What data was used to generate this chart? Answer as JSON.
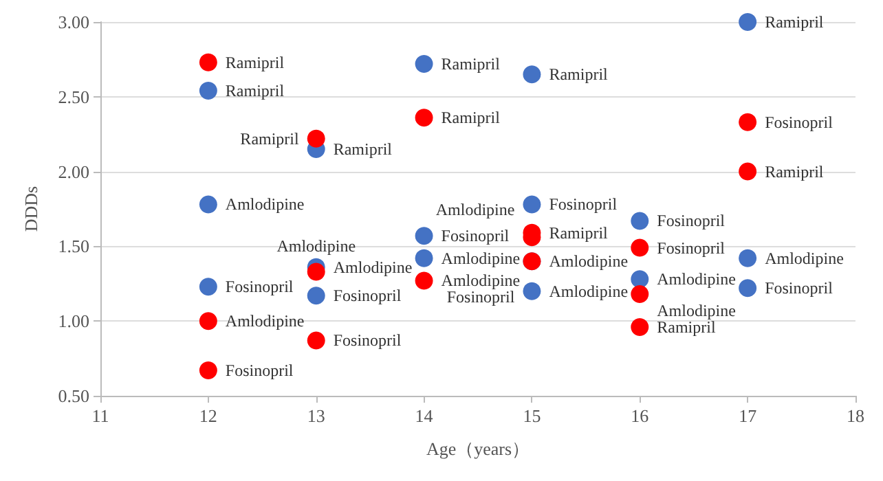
{
  "chart_data": {
    "type": "scatter",
    "xlabel": "Age（years）",
    "ylabel": "DDDs",
    "xlim": [
      11,
      18
    ],
    "xticks": [
      11,
      12,
      13,
      14,
      15,
      16,
      17,
      18
    ],
    "ylim": [
      0.5,
      3.0
    ],
    "yticks": [
      {
        "value": 0.5,
        "label": "0.50"
      },
      {
        "value": 1.0,
        "label": "1.00"
      },
      {
        "value": 1.5,
        "label": "1.50"
      },
      {
        "value": 2.0,
        "label": "2.00"
      },
      {
        "value": 2.5,
        "label": "2.50"
      },
      {
        "value": 3.0,
        "label": "3.00"
      }
    ],
    "grid": "y",
    "marker": "circle",
    "series": [
      {
        "color": "#4472c4",
        "x": [
          12,
          12,
          12,
          13,
          13,
          13,
          14,
          14,
          14,
          15,
          15,
          15,
          15,
          16,
          16,
          17,
          17,
          17
        ],
        "values": [
          2.54,
          1.78,
          1.23,
          2.15,
          1.36,
          1.17,
          2.72,
          1.57,
          1.42,
          2.65,
          1.78,
          1.4,
          1.2,
          1.67,
          1.28,
          3.0,
          1.42,
          1.22
        ],
        "value_labels": [
          "Ramipril",
          "Amlodipine",
          "Fosinopril",
          "Ramipril",
          "Amlodipine",
          "Fosinopril",
          "Ramipril",
          "Fosinopril",
          "Amlodipine",
          "Ramipril",
          "Fosinopril",
          "Amlodipine",
          "Amlodipine",
          "Fosinopril",
          "Amlodipine",
          "Ramipril",
          "Amlodipine",
          "Fosinopril"
        ]
      },
      {
        "color": "#ff0000",
        "x": [
          12,
          12,
          12,
          13,
          13,
          13,
          14,
          14,
          15,
          15,
          15,
          16,
          16,
          16,
          17,
          17
        ],
        "values": [
          2.73,
          1.0,
          0.67,
          2.22,
          1.33,
          0.87,
          2.36,
          1.27,
          1.59,
          1.56,
          1.4,
          1.49,
          1.18,
          0.96,
          2.33,
          2.0
        ],
        "value_labels": [
          "Ramipril",
          "Amlodipine",
          "Fosinopril",
          "Ramipril",
          "Amlodipine",
          "Fosinopril",
          "Ramipril",
          "Amlodipine",
          "Ramipril",
          "Amlodipine",
          "Fosinopril",
          "Fosinopril",
          "Amlodipine",
          "Ramipril",
          "Fosinopril",
          "Ramipril"
        ]
      }
    ]
  }
}
